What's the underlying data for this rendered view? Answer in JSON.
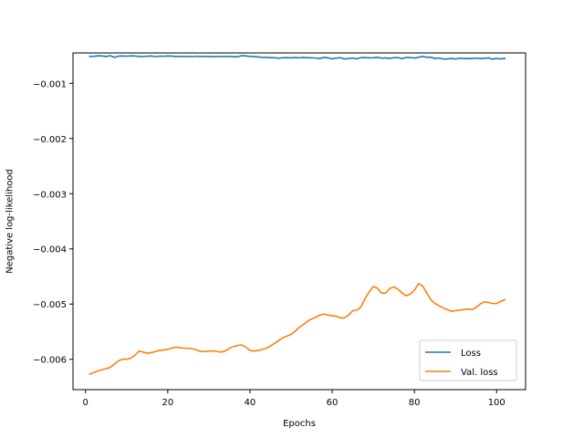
{
  "chart_data": {
    "type": "line",
    "title": "",
    "xlabel": "Epochs",
    "ylabel": "Negative log-likelihood",
    "xlim": [
      -3.05,
      107.05
    ],
    "ylim": [
      -0.00655,
      -0.00045
    ],
    "xticks": [
      0,
      20,
      40,
      60,
      80,
      100
    ],
    "yticks": [
      -0.006,
      -0.005,
      -0.004,
      -0.003,
      -0.002,
      -0.001
    ],
    "ytick_labels": [
      "−0.006",
      "−0.005",
      "−0.004",
      "−0.003",
      "−0.002",
      "−0.001"
    ],
    "grid": false,
    "legend_position": "lower-right",
    "series": [
      {
        "name": "Loss",
        "color": "#1f77b4",
        "x": [
          1,
          2,
          3,
          4,
          5,
          6,
          7,
          8,
          9,
          10,
          11,
          12,
          13,
          14,
          15,
          16,
          17,
          18,
          19,
          20,
          21,
          22,
          23,
          24,
          25,
          26,
          27,
          28,
          29,
          30,
          31,
          32,
          33,
          34,
          35,
          36,
          37,
          38,
          39,
          40,
          41,
          42,
          43,
          44,
          45,
          46,
          47,
          48,
          49,
          50,
          51,
          52,
          53,
          54,
          55,
          56,
          57,
          58,
          59,
          60,
          61,
          62,
          63,
          64,
          65,
          66,
          67,
          68,
          69,
          70,
          71,
          72,
          73,
          74,
          75,
          76,
          77,
          78,
          79,
          80,
          81,
          82,
          83,
          84,
          85,
          86,
          87,
          88,
          89,
          90,
          91,
          92,
          93,
          94,
          95,
          96,
          97,
          98,
          99,
          100,
          101,
          102
        ],
        "y": [
          -0.000513,
          -0.000512,
          -0.000502,
          -0.000505,
          -0.000515,
          -0.0005,
          -0.00053,
          -0.000508,
          -0.000505,
          -0.00051,
          -0.000503,
          -0.000506,
          -0.000513,
          -0.000516,
          -0.00051,
          -0.000505,
          -0.000518,
          -0.000508,
          -0.00051,
          -0.000505,
          -0.000507,
          -0.000517,
          -0.000512,
          -0.000515,
          -0.000512,
          -0.000518,
          -0.00051,
          -0.000515,
          -0.000512,
          -0.000513,
          -0.00052,
          -0.000514,
          -0.000516,
          -0.000512,
          -0.000515,
          -0.000519,
          -0.00052,
          -0.0005,
          -0.000505,
          -0.000513,
          -0.000518,
          -0.000523,
          -0.00053,
          -0.000531,
          -0.000535,
          -0.000538,
          -0.000545,
          -0.000538,
          -0.000536,
          -0.00054,
          -0.000534,
          -0.000539,
          -0.000532,
          -0.000538,
          -0.000537,
          -0.000545,
          -0.00055,
          -0.000532,
          -0.00054,
          -0.000556,
          -0.000545,
          -0.000536,
          -0.00056,
          -0.00055,
          -0.000543,
          -0.000557,
          -0.000535,
          -0.000533,
          -0.00054,
          -0.000538,
          -0.00053,
          -0.000545,
          -0.00054,
          -0.00055,
          -0.000537,
          -0.000535,
          -0.000553,
          -0.00053,
          -0.000535,
          -0.000543,
          -0.00053,
          -0.000512,
          -0.00053,
          -0.000528,
          -0.00055,
          -0.000543,
          -0.00056,
          -0.000558,
          -0.00055,
          -0.00056,
          -0.000545,
          -0.000553,
          -0.00055,
          -0.000555,
          -0.000543,
          -0.000553,
          -0.000548,
          -0.00054,
          -0.000563,
          -0.00055,
          -0.000558,
          -0.000548
        ]
      },
      {
        "name": "Val. loss",
        "color": "#ff7f0e",
        "x": [
          1,
          2,
          3,
          4,
          5,
          6,
          7,
          8,
          9,
          10,
          11,
          12,
          13,
          14,
          15,
          16,
          17,
          18,
          19,
          20,
          21,
          22,
          23,
          24,
          25,
          26,
          27,
          28,
          29,
          30,
          31,
          32,
          33,
          34,
          35,
          36,
          37,
          38,
          39,
          40,
          41,
          42,
          43,
          44,
          45,
          46,
          47,
          48,
          49,
          50,
          51,
          52,
          53,
          54,
          55,
          56,
          57,
          58,
          59,
          60,
          61,
          62,
          63,
          64,
          65,
          66,
          67,
          68,
          69,
          70,
          71,
          72,
          73,
          74,
          75,
          76,
          77,
          78,
          79,
          80,
          81,
          82,
          83,
          84,
          85,
          86,
          87,
          88,
          89,
          90,
          91,
          92,
          93,
          94,
          95,
          96,
          97,
          98,
          99,
          100,
          101,
          102
        ],
        "y": [
          -0.00627,
          -0.00624,
          -0.00621,
          -0.00619,
          -0.00617,
          -0.00615,
          -0.00609,
          -0.00603,
          -0.006,
          -0.006,
          -0.00598,
          -0.00593,
          -0.00585,
          -0.00587,
          -0.00589,
          -0.00588,
          -0.00586,
          -0.00584,
          -0.00583,
          -0.00582,
          -0.0058,
          -0.00578,
          -0.00579,
          -0.0058,
          -0.0058,
          -0.00581,
          -0.00583,
          -0.00586,
          -0.00586,
          -0.00585,
          -0.00585,
          -0.00586,
          -0.00587,
          -0.00585,
          -0.0058,
          -0.00577,
          -0.00575,
          -0.00574,
          -0.00578,
          -0.00584,
          -0.00585,
          -0.00584,
          -0.00582,
          -0.0058,
          -0.00576,
          -0.00571,
          -0.00566,
          -0.00561,
          -0.00558,
          -0.00555,
          -0.00549,
          -0.00542,
          -0.00537,
          -0.00531,
          -0.00527,
          -0.00524,
          -0.0052,
          -0.00518,
          -0.0052,
          -0.00521,
          -0.00522,
          -0.00525,
          -0.00525,
          -0.0052,
          -0.00512,
          -0.00511,
          -0.00505,
          -0.0049,
          -0.00478,
          -0.00468,
          -0.00471,
          -0.0048,
          -0.0048,
          -0.00472,
          -0.00469,
          -0.00473,
          -0.0048,
          -0.00485,
          -0.00482,
          -0.00475,
          -0.00463,
          -0.00467,
          -0.0048,
          -0.00492,
          -0.00499,
          -0.00503,
          -0.00507,
          -0.0051,
          -0.00513,
          -0.00512,
          -0.00511,
          -0.0051,
          -0.00509,
          -0.0051,
          -0.00506,
          -0.005,
          -0.00496,
          -0.00497,
          -0.00499,
          -0.00499,
          -0.00495,
          -0.00492
        ]
      }
    ]
  }
}
